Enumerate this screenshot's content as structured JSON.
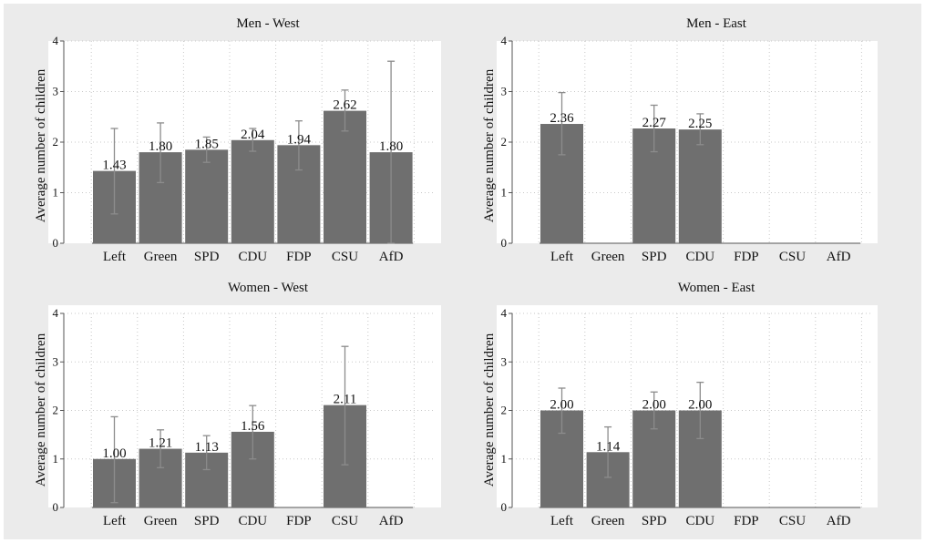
{
  "chart_data": [
    {
      "type": "bar",
      "title": "Men - West",
      "ylabel": "Average number of children",
      "ylim": [
        0,
        4
      ],
      "yticks": [
        0,
        1,
        2,
        3,
        4
      ],
      "grid": true,
      "categories": [
        "Left",
        "Green",
        "SPD",
        "CDU",
        "FDP",
        "CSU",
        "AfD"
      ],
      "values": [
        1.43,
        1.8,
        1.85,
        2.04,
        1.94,
        2.62,
        1.8
      ],
      "labels": [
        "1.43",
        "1.80",
        "1.85",
        "2.04",
        "1.94",
        "2.62",
        "1.80"
      ],
      "ci_low": [
        0.58,
        1.2,
        1.6,
        1.82,
        1.45,
        2.22,
        0
      ],
      "ci_high": [
        2.27,
        2.38,
        2.1,
        2.27,
        2.42,
        3.03,
        3.6
      ]
    },
    {
      "type": "bar",
      "title": "Men - East",
      "ylabel": "Average number of children",
      "ylim": [
        0,
        4
      ],
      "yticks": [
        0,
        1,
        2,
        3,
        4
      ],
      "grid": true,
      "categories": [
        "Left",
        "Green",
        "SPD",
        "CDU",
        "FDP",
        "CSU",
        "AfD"
      ],
      "values": [
        2.36,
        null,
        2.27,
        2.25,
        null,
        null,
        null
      ],
      "labels": [
        "2.36",
        "",
        "2.27",
        "2.25",
        "",
        "",
        ""
      ],
      "ci_low": [
        1.75,
        null,
        1.81,
        1.95,
        null,
        null,
        null
      ],
      "ci_high": [
        2.98,
        null,
        2.73,
        2.56,
        null,
        null,
        null
      ]
    },
    {
      "type": "bar",
      "title": "Women - West",
      "ylabel": "Average number of children",
      "ylim": [
        0,
        4
      ],
      "yticks": [
        0,
        1,
        2,
        3,
        4
      ],
      "grid": true,
      "categories": [
        "Left",
        "Green",
        "SPD",
        "CDU",
        "FDP",
        "CSU",
        "AfD"
      ],
      "values": [
        1.0,
        1.21,
        1.13,
        1.56,
        null,
        2.11,
        null
      ],
      "labels": [
        "1.00",
        "1.21",
        "1.13",
        "1.56",
        "",
        "2.11",
        ""
      ],
      "ci_low": [
        0.1,
        0.82,
        0.78,
        1.0,
        null,
        0.88,
        null
      ],
      "ci_high": [
        1.87,
        1.6,
        1.48,
        2.1,
        null,
        3.32,
        null
      ]
    },
    {
      "type": "bar",
      "title": "Women - East",
      "ylabel": "Average number of children",
      "ylim": [
        0,
        4
      ],
      "yticks": [
        0,
        1,
        2,
        3,
        4
      ],
      "grid": true,
      "categories": [
        "Left",
        "Green",
        "SPD",
        "CDU",
        "FDP",
        "CSU",
        "AfD"
      ],
      "values": [
        2.0,
        1.14,
        2.0,
        2.0,
        null,
        null,
        null
      ],
      "labels": [
        "2.00",
        "1.14",
        "2.00",
        "2.00",
        "",
        "",
        ""
      ],
      "ci_low": [
        1.53,
        0.62,
        1.62,
        1.42,
        null,
        null,
        null
      ],
      "ci_high": [
        2.46,
        1.66,
        2.38,
        2.58,
        null,
        null,
        null
      ]
    }
  ],
  "colors": {
    "background": "#ebebeb",
    "plot_background": "#ffffff",
    "bar_fill": "#6f6f6f",
    "error_bar": "#8c8c8c",
    "grid": "#c8c8c8",
    "axis": "#555555"
  }
}
